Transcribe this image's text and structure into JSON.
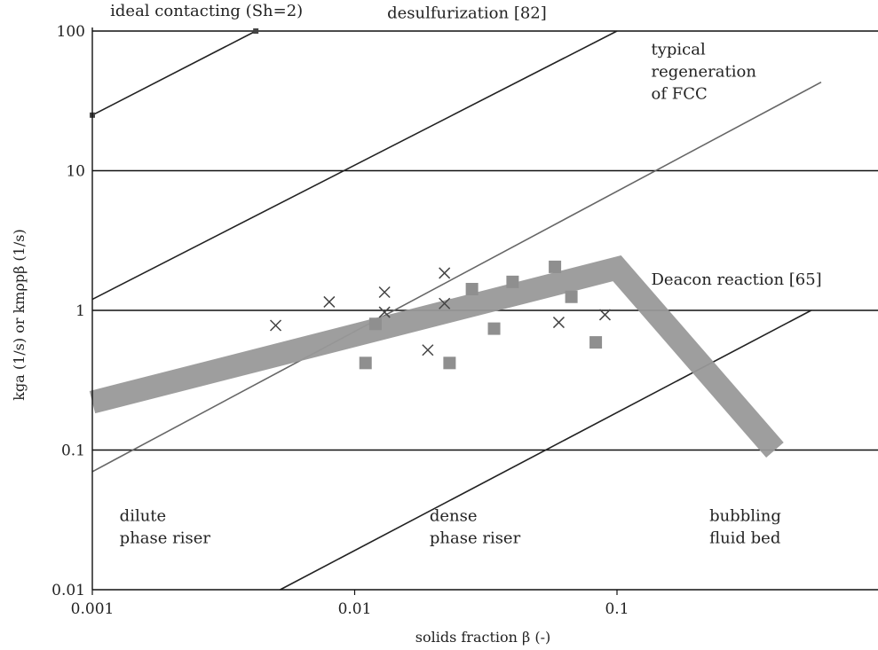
{
  "chart_data": {
    "type": "scatter",
    "xscale": "log",
    "yscale": "log",
    "xlim": [
      0.001,
      0.9
    ],
    "ylim": [
      0.01,
      100
    ],
    "grid": "horizontal",
    "xlabel": "solids fraction β (-)",
    "ylabel": "kga (1/s) or kmρpβ (1/s)",
    "x_ticks": [
      {
        "value": 0.001,
        "label": "0.001"
      },
      {
        "value": 0.01,
        "label": "0.01"
      },
      {
        "value": 0.1,
        "label": "0.1"
      }
    ],
    "y_ticks": [
      {
        "value": 0.01,
        "label": "0.01"
      },
      {
        "value": 0.1,
        "label": "0.1"
      },
      {
        "value": 1,
        "label": "1"
      },
      {
        "value": 10,
        "label": "10"
      },
      {
        "value": 100,
        "label": "100"
      }
    ],
    "lines": [
      {
        "label": "ideal contacting (Sh=2)",
        "color": "#222222",
        "width": 1.6,
        "points": [
          [
            0.001,
            25
          ],
          [
            0.0042,
            100
          ]
        ]
      },
      {
        "label": "desulfurization [82]",
        "color": "#222222",
        "width": 1.6,
        "points": [
          [
            0.001,
            1.2
          ],
          [
            0.1,
            100
          ]
        ]
      },
      {
        "label": "typical regeneration of FCC",
        "color": "#666666",
        "width": 1.6,
        "points": [
          [
            0.001,
            0.07
          ],
          [
            0.6,
            43
          ]
        ]
      },
      {
        "label": "Deacon reaction [65]",
        "color": "#222222",
        "width": 1.6,
        "points": [
          [
            0.0052,
            0.01
          ],
          [
            0.55,
            1.0
          ]
        ]
      }
    ],
    "trend_band": {
      "color": "#999999",
      "points": [
        [
          0.001,
          0.22
        ],
        [
          0.1,
          2.0
        ],
        [
          0.4,
          0.1
        ]
      ]
    },
    "series": [
      {
        "marker": "x",
        "color": "#444444",
        "points": [
          [
            0.005,
            0.78
          ],
          [
            0.008,
            1.15
          ],
          [
            0.013,
            1.35
          ],
          [
            0.013,
            0.97
          ],
          [
            0.019,
            0.52
          ],
          [
            0.022,
            1.85
          ],
          [
            0.022,
            1.12
          ],
          [
            0.06,
            0.82
          ],
          [
            0.09,
            0.93
          ]
        ]
      },
      {
        "marker": "square",
        "color": "#8f8f8f",
        "points": [
          [
            0.011,
            0.42
          ],
          [
            0.012,
            0.8
          ],
          [
            0.023,
            0.42
          ],
          [
            0.028,
            1.42
          ],
          [
            0.034,
            0.74
          ],
          [
            0.04,
            1.6
          ],
          [
            0.058,
            2.05
          ],
          [
            0.067,
            1.25
          ],
          [
            0.083,
            0.59
          ]
        ]
      }
    ],
    "annotations": [
      {
        "lines": [
          "ideal contacting (Sh=2)"
        ],
        "x": 0.00117,
        "y": 128
      },
      {
        "lines": [
          "desulfurization [82]"
        ],
        "x": 0.0133,
        "y": 124
      },
      {
        "lines": [
          "typical",
          "regeneration",
          "of FCC"
        ],
        "x": 0.135,
        "y": 68
      },
      {
        "lines": [
          "Deacon reaction [65]"
        ],
        "x": 0.135,
        "y": 1.53
      },
      {
        "lines": [
          "dilute",
          "phase riser"
        ],
        "x": 0.00127,
        "y": 0.031
      },
      {
        "lines": [
          "dense",
          "phase riser"
        ],
        "x": 0.0193,
        "y": 0.031
      },
      {
        "lines": [
          "bubbling",
          "fluid bed"
        ],
        "x": 0.225,
        "y": 0.031
      }
    ]
  }
}
